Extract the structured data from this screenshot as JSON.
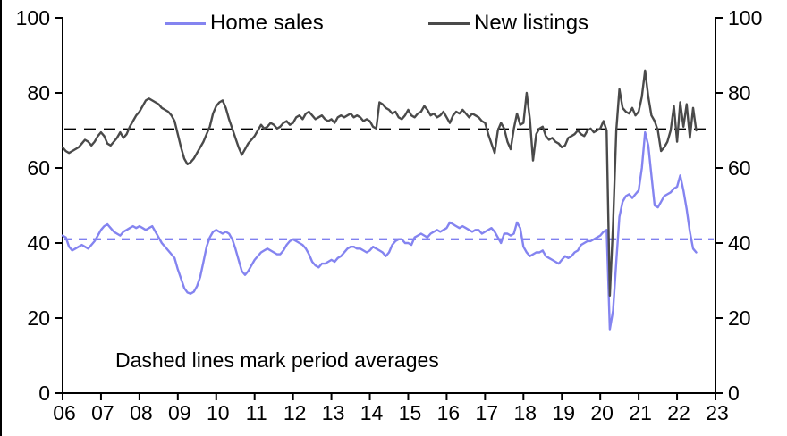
{
  "annotation": "Dashed lines mark period averages",
  "legend": {
    "home_sales": "Home sales",
    "new_listings": "New listings"
  },
  "colors": {
    "home_sales": "#8484f0",
    "new_listings": "#4a4a4a",
    "home_sales_average": "#8080f0",
    "new_listings_average": "#000000",
    "axis": "#000000"
  },
  "chart_data": {
    "type": "line",
    "title": "",
    "xlabel": "",
    "ylabel": "",
    "x_unit": "year (monthly data)",
    "x_start": 2006,
    "x_step": 0.0833333,
    "xlim": [
      2006,
      2023
    ],
    "ylim": [
      0,
      100
    ],
    "grid": false,
    "legend_position": "top",
    "dual_axis": true,
    "yticks": [
      0,
      20,
      40,
      60,
      80,
      100
    ],
    "xticks": [
      [
        2006,
        "06"
      ],
      [
        2007,
        "07"
      ],
      [
        2008,
        "08"
      ],
      [
        2009,
        "09"
      ],
      [
        2010,
        "10"
      ],
      [
        2011,
        "11"
      ],
      [
        2012,
        "12"
      ],
      [
        2013,
        "13"
      ],
      [
        2014,
        "14"
      ],
      [
        2015,
        "15"
      ],
      [
        2016,
        "16"
      ],
      [
        2017,
        "17"
      ],
      [
        2018,
        "18"
      ],
      [
        2019,
        "19"
      ],
      [
        2020,
        "20"
      ],
      [
        2021,
        "21"
      ],
      [
        2022,
        "22"
      ],
      [
        2023,
        "23"
      ]
    ],
    "annotation": "Dashed lines mark period averages",
    "series": [
      {
        "name": "Home sales",
        "color": "#8484f0",
        "line_width": 2.4,
        "period_average": 41,
        "average_color": "#8080f0",
        "average_dash": [
          9,
          7
        ],
        "values": [
          42,
          41.5,
          39,
          38,
          38.5,
          39,
          39.5,
          39,
          38.5,
          39.5,
          40.5,
          42,
          43.5,
          44.5,
          45,
          44,
          43,
          42.5,
          42,
          43,
          43.5,
          44,
          44.5,
          44,
          44.5,
          44,
          43.5,
          44,
          44.5,
          43,
          41.5,
          40,
          39,
          38,
          37,
          36,
          33,
          30.5,
          28,
          26.8,
          26.5,
          27,
          28.5,
          31,
          35,
          39,
          41.5,
          43,
          43.5,
          43,
          42.5,
          43,
          42.5,
          41,
          38.5,
          35.5,
          32.5,
          31.5,
          32.5,
          34,
          35.5,
          36.5,
          37.5,
          38,
          38.5,
          38,
          37.5,
          37,
          37,
          38,
          39.5,
          40.5,
          41,
          40.5,
          40,
          39.5,
          38.5,
          37,
          35,
          34,
          33.5,
          34.5,
          34.5,
          35,
          35.5,
          35,
          36,
          36.5,
          37.5,
          38.5,
          39,
          39,
          38.5,
          38.5,
          38,
          37.5,
          38,
          39,
          38.5,
          38,
          37.5,
          36.5,
          37.5,
          39.5,
          40.5,
          41,
          41,
          40,
          40,
          39.5,
          41.5,
          42,
          42.5,
          42,
          41.5,
          42.5,
          43,
          43.5,
          43,
          43.5,
          44,
          45.5,
          45,
          44.5,
          44,
          44.5,
          44,
          43.5,
          43,
          43.5,
          43.5,
          42.5,
          43,
          43.5,
          44,
          43,
          41.5,
          40,
          42.5,
          42.5,
          42,
          42.5,
          45.5,
          44,
          39,
          37.5,
          36.5,
          37,
          37.5,
          37.5,
          38,
          36.5,
          36,
          35.5,
          35,
          34.5,
          35.5,
          36.5,
          36,
          36.5,
          37.5,
          38,
          39.5,
          40,
          40.5,
          40.5,
          41,
          41.5,
          42,
          43,
          43.5,
          17,
          22,
          35,
          47,
          51,
          52.5,
          53,
          52,
          53,
          54,
          60,
          69.5,
          66,
          58,
          50,
          49.5,
          51,
          52.5,
          53,
          53.5,
          54.5,
          55,
          58,
          54,
          49,
          43,
          38.5,
          37.5
        ]
      },
      {
        "name": "New listings",
        "color": "#4a4a4a",
        "line_width": 2.4,
        "period_average": 70.3,
        "average_color": "#000000",
        "average_dash": [
          13,
          9
        ],
        "values": [
          65.5,
          64.5,
          64,
          64.5,
          65,
          65.5,
          66.5,
          67.5,
          67,
          66,
          67,
          68.5,
          69.5,
          68.5,
          66.5,
          66,
          67,
          68,
          69.5,
          68,
          69,
          71,
          72.5,
          74,
          75,
          76.5,
          78,
          78.5,
          78,
          77.5,
          77,
          76,
          75.5,
          75,
          74,
          72.5,
          69,
          65.5,
          62.5,
          61,
          61.5,
          62.5,
          64,
          65.5,
          67,
          69,
          71,
          74.5,
          76.5,
          77.5,
          78,
          76,
          73,
          70.5,
          68,
          65.5,
          63.5,
          65,
          66.5,
          67.5,
          68.5,
          70,
          71.5,
          70.5,
          71,
          72,
          71.5,
          70.5,
          71,
          72,
          72.5,
          71.5,
          72,
          73.5,
          74,
          73,
          74.5,
          75,
          74,
          73,
          73.5,
          74,
          73,
          72.5,
          73,
          72,
          73.5,
          74,
          73.5,
          74,
          74.5,
          73.5,
          74,
          73.5,
          72.5,
          73,
          72.5,
          71,
          70.5,
          77.5,
          77,
          76,
          75.5,
          74.5,
          75,
          73.5,
          73,
          74,
          75.5,
          74,
          73.5,
          74.5,
          75,
          76.5,
          75.5,
          74,
          74.5,
          73.5,
          74,
          75,
          73.5,
          72,
          74,
          75,
          74.5,
          75.5,
          74.5,
          73.5,
          74.5,
          74,
          73.5,
          72.5,
          72,
          69,
          66.5,
          64,
          70,
          72,
          70.5,
          67,
          65,
          70.5,
          74.5,
          71.5,
          72,
          80,
          73,
          62,
          69,
          70.5,
          71,
          68.5,
          67.5,
          68,
          67,
          66.5,
          65.5,
          66,
          68,
          68.5,
          69,
          70,
          69,
          68.5,
          70,
          70.5,
          69.5,
          70,
          70.5,
          72.5,
          70,
          26,
          45,
          70,
          81,
          76,
          75,
          74.5,
          76,
          74,
          75,
          79,
          86,
          79,
          74,
          72.5,
          70,
          64.5,
          65.5,
          67,
          70,
          76.5,
          67,
          77.5,
          71,
          77,
          68,
          76,
          70
        ]
      }
    ]
  }
}
